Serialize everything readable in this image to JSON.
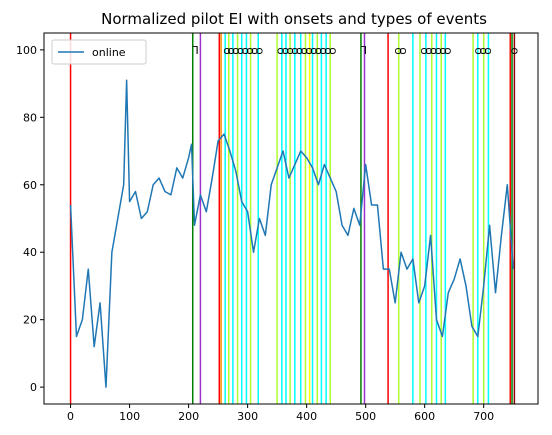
{
  "chart_data": {
    "type": "line",
    "title": "Normalized pilot EI with onsets and types of events",
    "xlabel": "",
    "ylabel": "",
    "xlim": [
      -45,
      792
    ],
    "ylim": [
      -5,
      105
    ],
    "x_ticks": [
      0,
      100,
      200,
      300,
      400,
      500,
      600,
      700
    ],
    "y_ticks": [
      0,
      20,
      40,
      60,
      80,
      100
    ],
    "grid": false,
    "legend": {
      "placement": "top-left",
      "entries": [
        "online"
      ]
    },
    "series": [
      {
        "name": "online",
        "color": "#1f77b4",
        "x": [
          0,
          10,
          20,
          30,
          40,
          50,
          60,
          70,
          80,
          90,
          95,
          100,
          110,
          120,
          130,
          140,
          150,
          160,
          170,
          180,
          190,
          200,
          205,
          210,
          220,
          230,
          240,
          250,
          260,
          270,
          280,
          290,
          300,
          310,
          320,
          330,
          340,
          350,
          360,
          370,
          380,
          390,
          400,
          410,
          420,
          430,
          440,
          450,
          460,
          470,
          480,
          490,
          500,
          510,
          520,
          530,
          540,
          550,
          560,
          570,
          580,
          590,
          600,
          610,
          620,
          630,
          640,
          650,
          660,
          670,
          680,
          690,
          700,
          710,
          720,
          730,
          740,
          750
        ],
        "y": [
          54,
          15,
          20,
          35,
          12,
          25,
          0,
          40,
          50,
          60,
          91,
          55,
          58,
          50,
          52,
          60,
          62,
          58,
          57,
          65,
          62,
          68,
          72,
          48,
          57,
          52,
          62,
          73,
          75,
          70,
          64,
          55,
          52,
          40,
          50,
          45,
          60,
          65,
          70,
          62,
          66,
          70,
          68,
          65,
          60,
          66,
          62,
          58,
          48,
          45,
          53,
          48,
          66,
          54,
          54,
          35,
          35,
          25,
          40,
          35,
          38,
          25,
          30,
          45,
          20,
          15,
          28,
          32,
          38,
          30,
          18,
          15,
          30,
          48,
          28,
          45,
          60,
          35
        ]
      }
    ],
    "event_lines": [
      {
        "x": 0,
        "color": "#ff0000"
      },
      {
        "x": 207,
        "color": "#008000"
      },
      {
        "x": 220,
        "color": "#9932cc"
      },
      {
        "x": 252,
        "color": "#ff0000"
      },
      {
        "x": 255,
        "color": "#ff8c00"
      },
      {
        "x": 262,
        "color": "#00ffff"
      },
      {
        "x": 268,
        "color": "#adff2f"
      },
      {
        "x": 275,
        "color": "#00ffff"
      },
      {
        "x": 283,
        "color": "#adff2f"
      },
      {
        "x": 290,
        "color": "#00ffff"
      },
      {
        "x": 298,
        "color": "#00ffff"
      },
      {
        "x": 305,
        "color": "#adff2f"
      },
      {
        "x": 318,
        "color": "#00ffff"
      },
      {
        "x": 350,
        "color": "#adff2f"
      },
      {
        "x": 358,
        "color": "#00ffff"
      },
      {
        "x": 365,
        "color": "#00ffff"
      },
      {
        "x": 372,
        "color": "#adff2f"
      },
      {
        "x": 380,
        "color": "#00ffff"
      },
      {
        "x": 390,
        "color": "#00ffff"
      },
      {
        "x": 398,
        "color": "#adff2f"
      },
      {
        "x": 405,
        "color": "#ffff00"
      },
      {
        "x": 410,
        "color": "#00ffff"
      },
      {
        "x": 418,
        "color": "#adff2f"
      },
      {
        "x": 425,
        "color": "#00ffff"
      },
      {
        "x": 433,
        "color": "#00ffff"
      },
      {
        "x": 440,
        "color": "#adff2f"
      },
      {
        "x": 492,
        "color": "#008000"
      },
      {
        "x": 498,
        "color": "#9932cc"
      },
      {
        "x": 538,
        "color": "#ff0000"
      },
      {
        "x": 556,
        "color": "#adff2f"
      },
      {
        "x": 580,
        "color": "#00ffff"
      },
      {
        "x": 592,
        "color": "#adff2f"
      },
      {
        "x": 602,
        "color": "#00ffff"
      },
      {
        "x": 612,
        "color": "#adff2f"
      },
      {
        "x": 620,
        "color": "#00ffff"
      },
      {
        "x": 628,
        "color": "#adff2f"
      },
      {
        "x": 635,
        "color": "#00ffff"
      },
      {
        "x": 682,
        "color": "#adff2f"
      },
      {
        "x": 690,
        "color": "#00ffff"
      },
      {
        "x": 700,
        "color": "#adff2f"
      },
      {
        "x": 708,
        "color": "#00ffff"
      },
      {
        "x": 745,
        "color": "#ff0000"
      },
      {
        "x": 748,
        "color": "#008000"
      },
      {
        "x": 752,
        "color": "#8b0000"
      }
    ],
    "event_markers": [
      {
        "x": 212,
        "label": "⅂"
      },
      {
        "x": 265,
        "label": "ᴑ"
      },
      {
        "x": 272,
        "label": "ᴑ"
      },
      {
        "x": 280,
        "label": "ᴑ"
      },
      {
        "x": 288,
        "label": "ᴑ"
      },
      {
        "x": 296,
        "label": "ᴑ"
      },
      {
        "x": 304,
        "label": "ᴑ"
      },
      {
        "x": 312,
        "label": "ᴑ"
      },
      {
        "x": 320,
        "label": "ᴑ"
      },
      {
        "x": 356,
        "label": "ᴑ"
      },
      {
        "x": 364,
        "label": "ᴑ"
      },
      {
        "x": 372,
        "label": "ᴑ"
      },
      {
        "x": 380,
        "label": "ᴑ"
      },
      {
        "x": 388,
        "label": "ᴑ"
      },
      {
        "x": 396,
        "label": "ᴑ"
      },
      {
        "x": 404,
        "label": "ᴑ"
      },
      {
        "x": 412,
        "label": "ᴑ"
      },
      {
        "x": 420,
        "label": "ᴑ"
      },
      {
        "x": 428,
        "label": "ᴑ"
      },
      {
        "x": 436,
        "label": "ᴑ"
      },
      {
        "x": 444,
        "label": "ᴑ"
      },
      {
        "x": 497,
        "label": "⅂"
      },
      {
        "x": 555,
        "label": "ᴑ"
      },
      {
        "x": 563,
        "label": "ᴑ"
      },
      {
        "x": 599,
        "label": "ᴑ"
      },
      {
        "x": 607,
        "label": "ᴑ"
      },
      {
        "x": 615,
        "label": "ᴑ"
      },
      {
        "x": 623,
        "label": "ᴑ"
      },
      {
        "x": 631,
        "label": "ᴑ"
      },
      {
        "x": 639,
        "label": "ᴑ"
      },
      {
        "x": 691,
        "label": "ᴑ"
      },
      {
        "x": 699,
        "label": "ᴑ"
      },
      {
        "x": 707,
        "label": "ᴑ"
      },
      {
        "x": 752,
        "label": "ᴑ"
      }
    ]
  }
}
